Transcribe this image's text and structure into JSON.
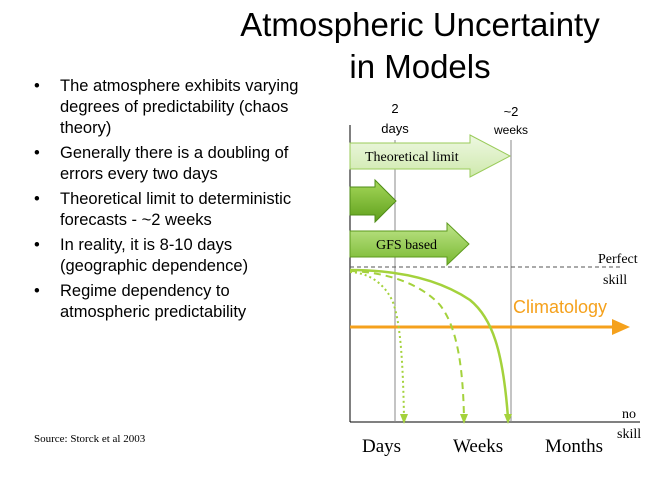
{
  "title": {
    "line1": "Atmospheric Uncertainty",
    "line2": "in Models"
  },
  "bullets": [
    "The atmosphere exhibits varying degrees of predictability (chaos theory)",
    "Generally there is a doubling of errors every two days",
    "Theoretical limit to deterministic forecasts - ~2 weeks",
    "In reality, it is 8-10 days (geographic dependence)",
    "Regime dependency to atmospheric predictability"
  ],
  "source": "Source: Storck et al 2003",
  "diagram": {
    "top_label_2days_line1": "2",
    "top_label_2days_line2": "days",
    "top_label_2weeks_line1": "~2",
    "top_label_2weeks_line2": "weeks",
    "arrow_theoretical": "Theoretical limit",
    "arrow_gfs": "GFS based",
    "perfect_skill_line1": "Perfect",
    "perfect_skill_line2": "skill",
    "climatology": "Climatology",
    "no_skill_line1": "no",
    "no_skill_line2": "skill",
    "x_days": "Days",
    "x_weeks": "Weeks",
    "x_months": "Months"
  },
  "colors": {
    "arrow_fill_light": "#ddf0c4",
    "arrow_fill_dark": "#7fbf2a",
    "curve_green": "#a4d23c",
    "climatology_orange": "#f5a11c",
    "climatology_text": "#f5a11c"
  }
}
